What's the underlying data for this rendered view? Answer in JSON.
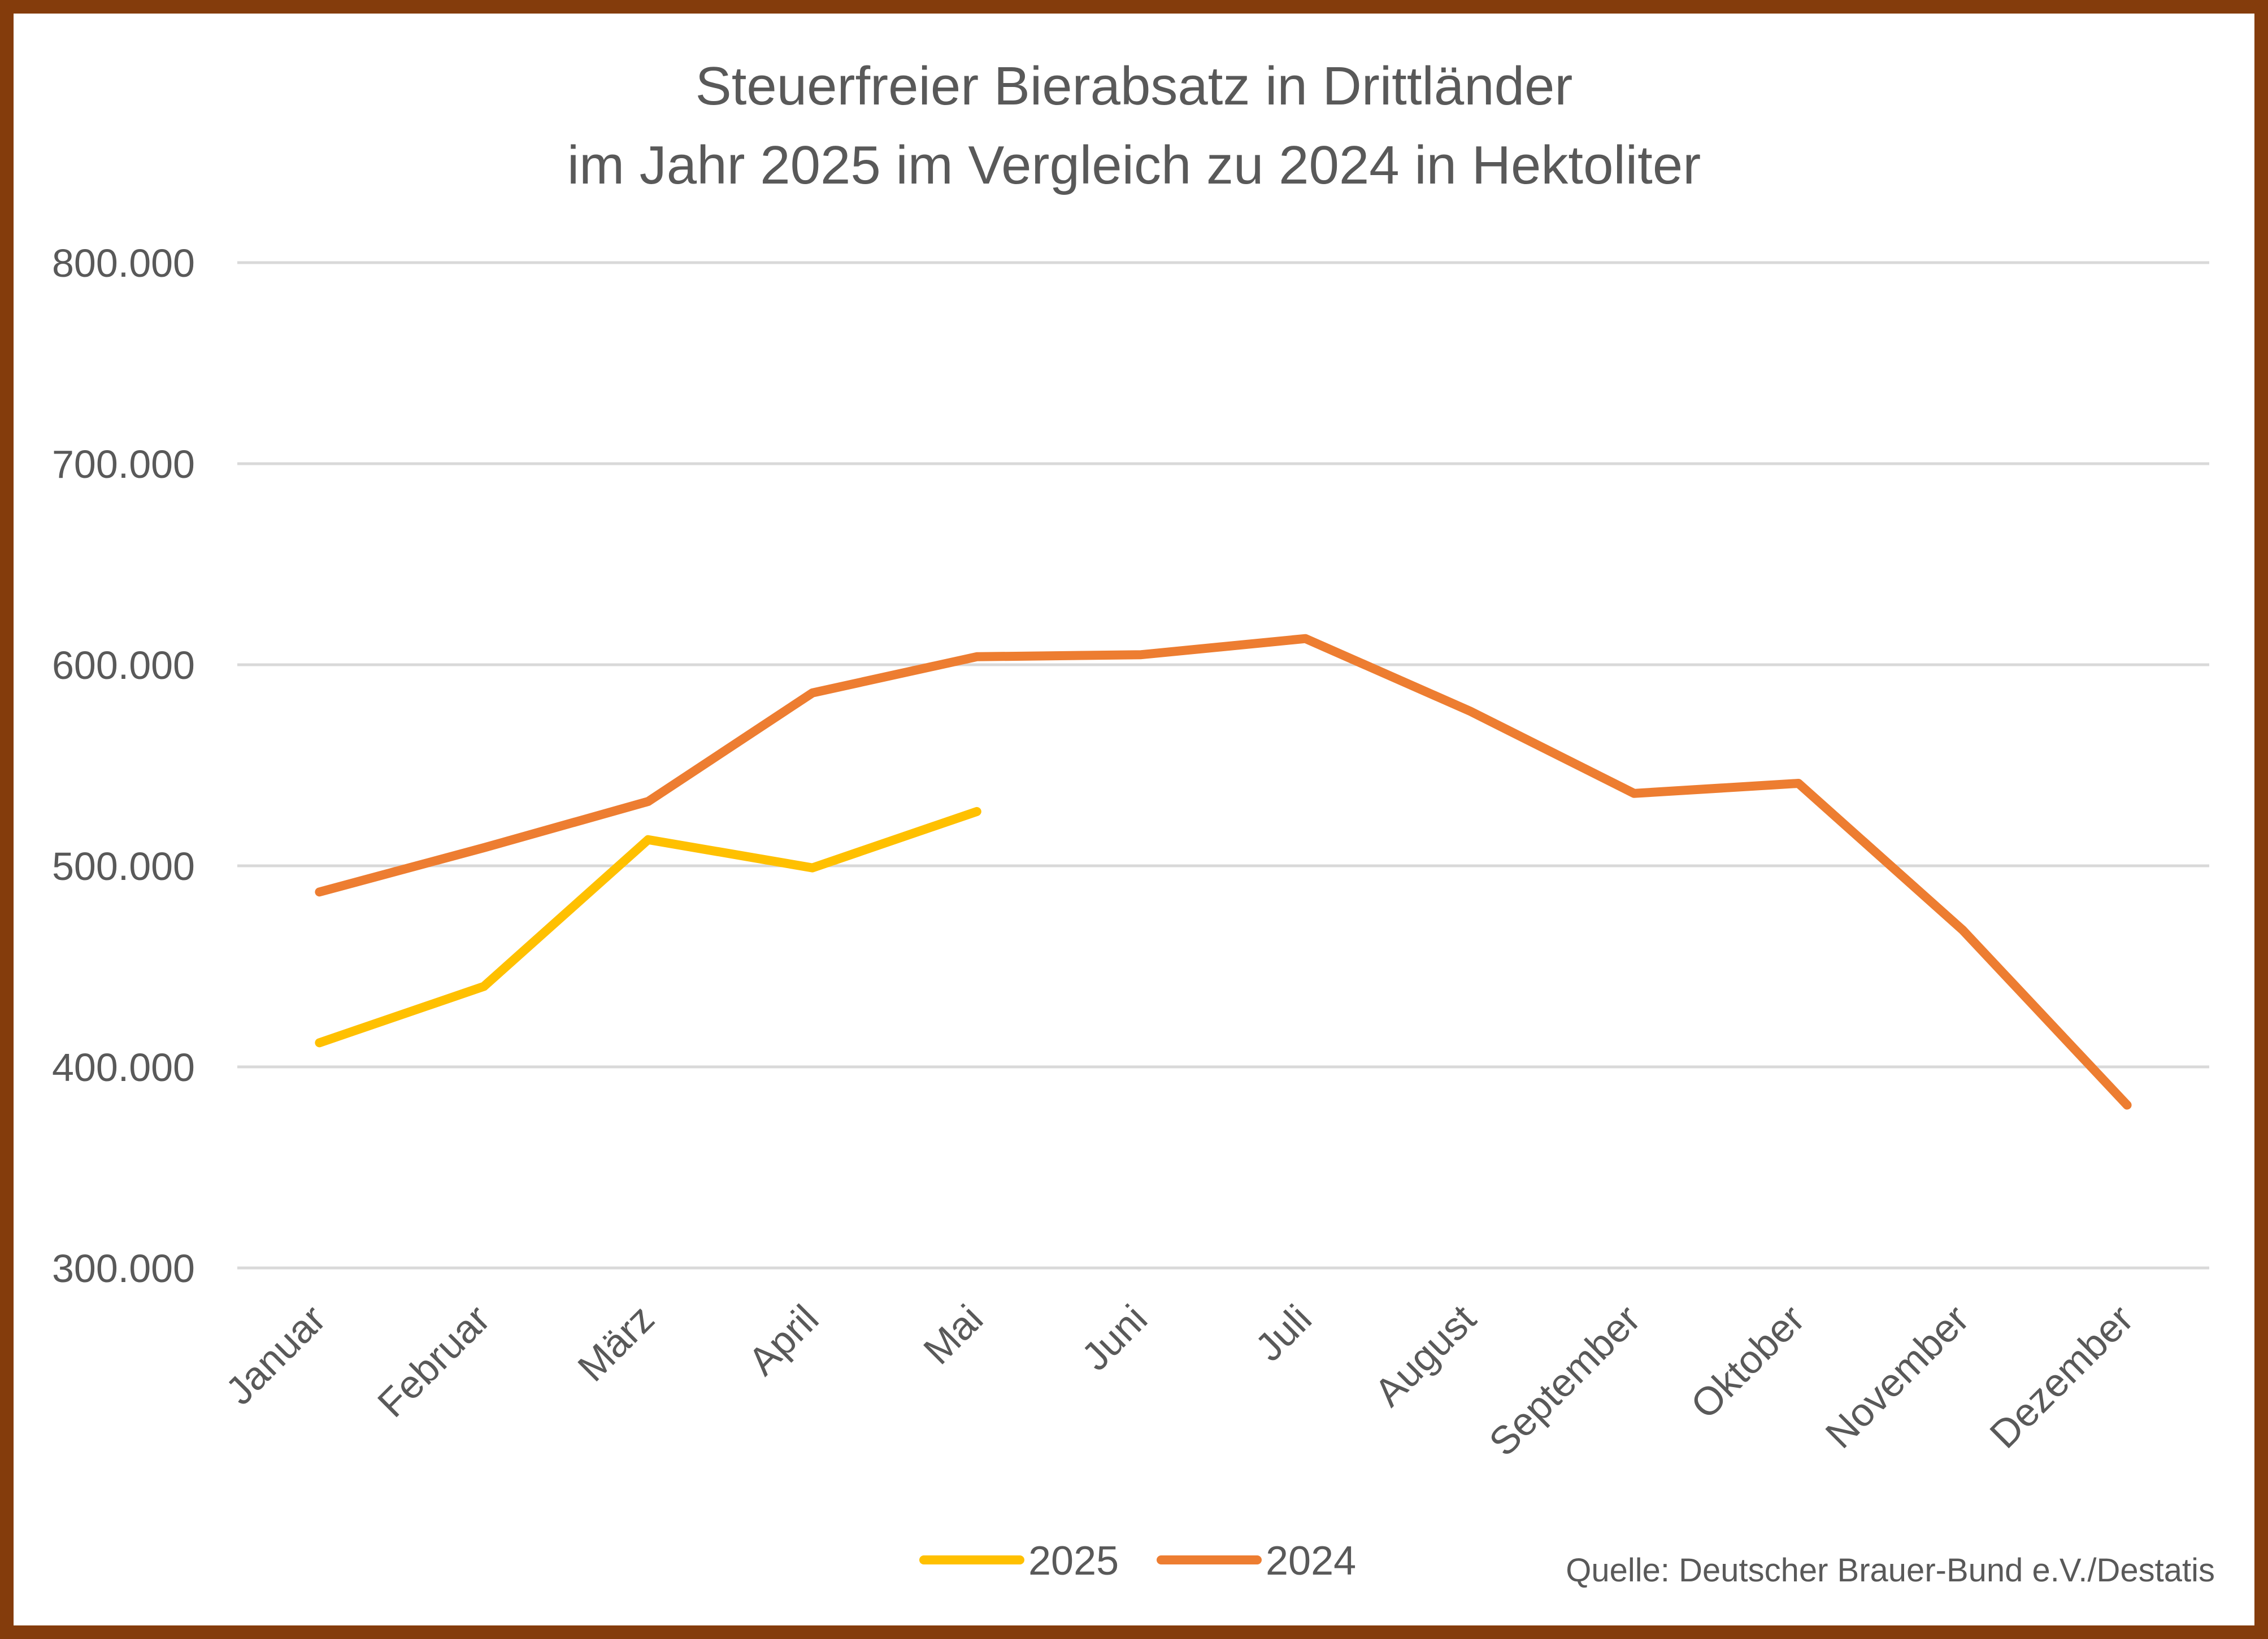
{
  "chart_data": {
    "type": "line",
    "title": "Steuerfreier Bierabsatz in Drittländer",
    "subtitle": "im Jahr 2025 im Vergleich zu 2024 in Hektoliter",
    "xlabel": "",
    "ylabel": "",
    "categories": [
      "Januar",
      "Februar",
      "März",
      "April",
      "Mai",
      "Juni",
      "Juli",
      "August",
      "September",
      "Oktober",
      "November",
      "Dezember"
    ],
    "ylim": [
      300000,
      800000
    ],
    "yticks": [
      300000,
      400000,
      500000,
      600000,
      700000,
      800000
    ],
    "ytick_labels": [
      "300.000",
      "400.000",
      "500.000",
      "600.000",
      "700.000",
      "800.000"
    ],
    "grid": true,
    "legend_position": "bottom",
    "series": [
      {
        "name": "2025",
        "color": "#ffc000",
        "values": [
          412000,
          440000,
          513000,
          499000,
          527000,
          null,
          null,
          null,
          null,
          null,
          null,
          null
        ]
      },
      {
        "name": "2024",
        "color": "#ed7d31",
        "values": [
          487000,
          509000,
          532000,
          586000,
          604000,
          605000,
          613000,
          577000,
          536000,
          541000,
          468000,
          381000
        ]
      }
    ],
    "source": "Quelle: Deutscher Brauer-Bund e.V./Destatis"
  },
  "style": {
    "border_color": "#843c0c",
    "grid_color": "#d9d9d9",
    "text_color": "#595959"
  }
}
